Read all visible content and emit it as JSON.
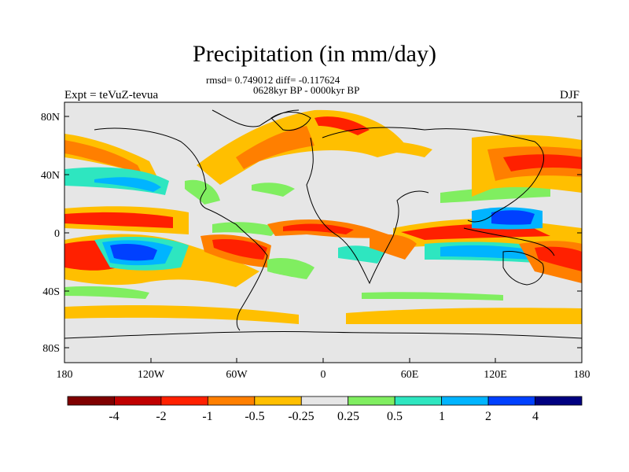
{
  "title": "Precipitation (in mm/day)",
  "stats_text": "rmsd= 0.749012 diff= -0.117624",
  "period_text": "0628kyr BP - 0000kyr BP",
  "experiment_text": "Expt = teVuZ-tevua",
  "season_text": "DJF",
  "lat_ticks": [
    "80N",
    "40N",
    "0",
    "40S",
    "80S"
  ],
  "lon_ticks": [
    "180",
    "120W",
    "60W",
    "0",
    "60E",
    "120E",
    "180"
  ],
  "colorbar": {
    "labels": [
      "-4",
      "-2",
      "-1",
      "-0.5",
      "-0.25",
      "0.25",
      "0.5",
      "1",
      "2",
      "4"
    ],
    "colors": [
      "#7f0000",
      "#c00000",
      "#ff2000",
      "#ff7f00",
      "#ffbf00",
      "#e6e6e6",
      "#80ee60",
      "#2ee6c0",
      "#00b4ff",
      "#0040ff",
      "#000080"
    ]
  }
}
